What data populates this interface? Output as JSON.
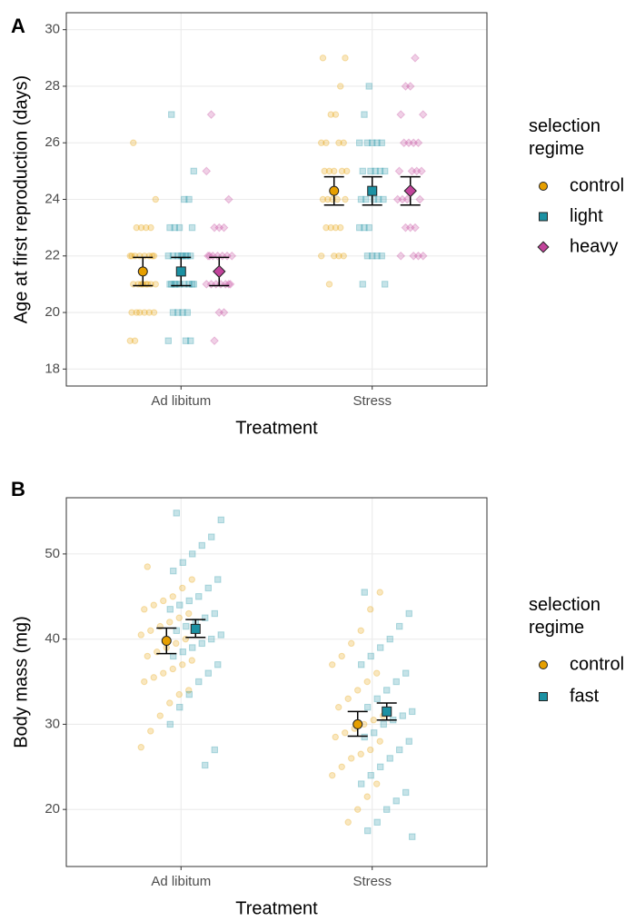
{
  "chart_data": [
    {
      "type": "point-errorbar",
      "panel_label": "A",
      "xlabel": "Treatment",
      "ylabel": "Age at first reproduction (days)",
      "categories": [
        "Ad libitum",
        "Stress"
      ],
      "ylim": [
        17.4,
        30.6
      ],
      "yticks": [
        18,
        20,
        22,
        24,
        26,
        28,
        30
      ],
      "grid": true,
      "legend_title": "selection regime",
      "series": [
        {
          "name": "control",
          "color": "#E69F00",
          "shape": "circle",
          "mean": [
            21.45,
            24.3
          ],
          "ci_low": [
            20.95,
            23.8
          ],
          "ci_high": [
            21.95,
            24.8
          ],
          "points": [
            [
              19,
              19,
              20,
              20,
              20,
              20,
              20,
              20,
              21,
              21,
              21,
              21,
              21,
              21,
              21,
              21,
              22,
              22,
              22,
              22,
              22,
              22,
              22,
              22,
              23,
              23,
              23,
              23,
              24,
              26
            ],
            [
              21,
              22,
              22,
              22,
              22,
              23,
              23,
              23,
              23,
              24,
              24,
              24,
              24,
              24,
              25,
              25,
              25,
              25,
              25,
              26,
              26,
              26,
              26,
              27,
              27,
              28,
              29,
              29
            ]
          ]
        },
        {
          "name": "light",
          "color": "#1C91A3",
          "shape": "square",
          "mean": [
            21.45,
            24.3
          ],
          "ci_low": [
            20.95,
            23.8
          ],
          "ci_high": [
            21.95,
            24.8
          ],
          "points": [
            [
              19,
              19,
              19,
              20,
              20,
              20,
              20,
              21,
              21,
              21,
              21,
              21,
              21,
              21,
              21,
              21,
              22,
              22,
              22,
              22,
              22,
              22,
              22,
              22,
              23,
              23,
              23,
              23,
              24,
              24,
              25,
              27
            ],
            [
              21,
              21,
              22,
              22,
              22,
              22,
              23,
              23,
              23,
              24,
              24,
              24,
              24,
              24,
              25,
              25,
              25,
              25,
              25,
              26,
              26,
              26,
              26,
              26,
              27,
              28
            ]
          ]
        },
        {
          "name": "heavy",
          "color": "#C2449B",
          "shape": "diamond",
          "mean": [
            21.45,
            24.3
          ],
          "ci_low": [
            20.95,
            23.8
          ],
          "ci_high": [
            21.95,
            24.8
          ],
          "points": [
            [
              19,
              20,
              20,
              21,
              21,
              21,
              21,
              21,
              21,
              21,
              22,
              22,
              22,
              22,
              22,
              22,
              22,
              23,
              23,
              23,
              24,
              25,
              27
            ],
            [
              22,
              22,
              22,
              22,
              23,
              23,
              23,
              24,
              24,
              24,
              24,
              25,
              25,
              25,
              25,
              26,
              26,
              26,
              26,
              27,
              27,
              28,
              28,
              29
            ]
          ]
        }
      ]
    },
    {
      "type": "point-errorbar",
      "panel_label": "B",
      "xlabel": "Treatment",
      "ylabel": "Body mass (mg)",
      "categories": [
        "Ad libitum",
        "Stress"
      ],
      "ylim": [
        13.3,
        56.6
      ],
      "yticks": [
        20,
        30,
        40,
        50
      ],
      "grid": true,
      "legend_title": "selection regime",
      "series": [
        {
          "name": "control",
          "color": "#E69F00",
          "shape": "circle",
          "mean": [
            39.8,
            30.0
          ],
          "ci_low": [
            38.3,
            28.6
          ],
          "ci_high": [
            41.3,
            31.5
          ],
          "points": [
            [
              27.3,
              29.2,
              31,
              32.5,
              33.5,
              34,
              35,
              35.5,
              36,
              36.5,
              37,
              37.5,
              38,
              38.5,
              39,
              39.5,
              40,
              40.5,
              41,
              41.5,
              42,
              42.5,
              43,
              43.5,
              44,
              44.5,
              45,
              46,
              47,
              48.5
            ],
            [
              18.5,
              20,
              21.5,
              23,
              24,
              25,
              26,
              26.5,
              27,
              28,
              28.5,
              29,
              29.5,
              30,
              30.5,
              31,
              32,
              33,
              34,
              35,
              36,
              37,
              38,
              39.5,
              41,
              43.5,
              45.5
            ]
          ]
        },
        {
          "name": "fast",
          "color": "#1C91A3",
          "shape": "square",
          "mean": [
            41.2,
            31.5
          ],
          "ci_low": [
            40.2,
            30.5
          ],
          "ci_high": [
            42.3,
            32.5
          ],
          "points": [
            [
              25.2,
              27,
              30,
              32,
              33.5,
              35,
              36,
              37,
              38,
              38.5,
              39,
              39.5,
              40,
              40.5,
              41,
              41.5,
              42,
              42.5,
              43,
              43.5,
              44,
              44.5,
              45,
              46,
              47,
              48,
              49,
              50,
              51,
              52,
              54,
              54.8
            ],
            [
              16.8,
              17.5,
              18.5,
              20,
              21,
              22,
              23,
              24,
              25,
              26,
              27,
              28,
              28.5,
              29,
              30,
              30.5,
              31,
              31.5,
              32,
              33,
              34,
              35,
              36,
              37,
              38,
              39,
              40,
              41.5,
              43,
              45.5
            ]
          ]
        }
      ]
    }
  ]
}
